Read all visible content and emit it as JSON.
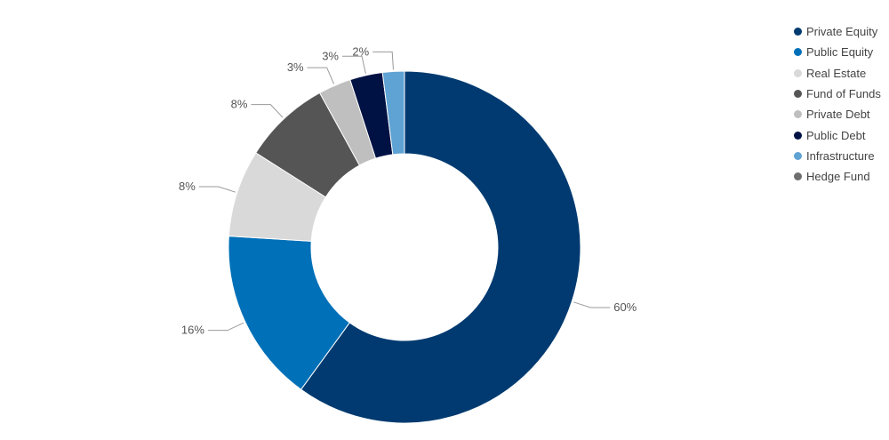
{
  "chart_data": {
    "type": "pie",
    "donut": true,
    "legend_position": "top-right",
    "slices": [
      {
        "name": "Private Equity",
        "value": 60,
        "label": "60%",
        "color": "#003A70"
      },
      {
        "name": "Public Equity",
        "value": 16,
        "label": "16%",
        "color": "#0070B8"
      },
      {
        "name": "Real Estate",
        "value": 8,
        "label": "8%",
        "color": "#D9D9D9"
      },
      {
        "name": "Fund of Funds",
        "value": 8,
        "label": "8%",
        "color": "#555555"
      },
      {
        "name": "Private Debt",
        "value": 3,
        "label": "3%",
        "color": "#BFBFBF"
      },
      {
        "name": "Public Debt",
        "value": 3,
        "label": "3%",
        "color": "#001244"
      },
      {
        "name": "Infrastructure",
        "value": 2,
        "label": "2%",
        "color": "#5FA2D4"
      },
      {
        "name": "Hedge Fund",
        "value": 0,
        "label": "",
        "color": "#6E6E6E"
      }
    ]
  }
}
